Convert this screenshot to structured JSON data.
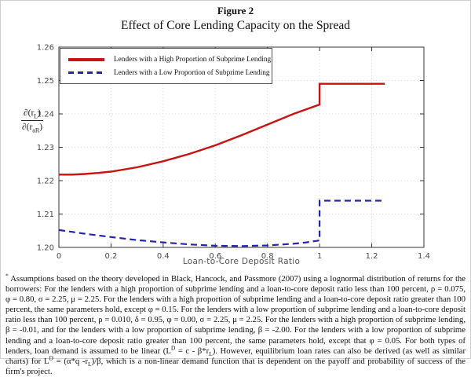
{
  "header": {
    "figure_label": "Figure 2",
    "title": "Effect of Core Lending Capacity on the Spread"
  },
  "chart_data": {
    "type": "line",
    "title": "Effect of Core Lending Capacity on the Spread",
    "xlabel": "Loan-to-Core Deposit Ratio",
    "ylabel": "∂(r_L)/∂(r_aR)",
    "ylabel_fraction": {
      "numerator": [
        {
          "t": "∂(r"
        },
        {
          "t": "L",
          "s": "sub"
        },
        {
          "t": ")"
        }
      ],
      "denominator": [
        {
          "t": "∂(r"
        },
        {
          "t": "aR",
          "s": "sub"
        },
        {
          "t": ")"
        }
      ]
    },
    "xlim": [
      0,
      1.4
    ],
    "ylim": [
      1.2,
      1.26
    ],
    "x_ticks": [
      "0",
      "0.2",
      "0.4",
      "0.6",
      "0.8",
      "1",
      "1.2",
      "1.4"
    ],
    "y_ticks": [
      "1.20",
      "1.21",
      "1.22",
      "1.23",
      "1.24",
      "1.25",
      "1.26"
    ],
    "grid": true,
    "legend_position": "top-left",
    "series": [
      {
        "name": "Lenders with a High Proportion of Subprime Lending",
        "color": "#cc1111",
        "style": "solid",
        "points": [
          [
            0,
            1.2218
          ],
          [
            0.05,
            1.2218
          ],
          [
            0.1,
            1.222
          ],
          [
            0.15,
            1.2223
          ],
          [
            0.2,
            1.2227
          ],
          [
            0.3,
            1.224
          ],
          [
            0.4,
            1.2258
          ],
          [
            0.5,
            1.228
          ],
          [
            0.6,
            1.2306
          ],
          [
            0.7,
            1.2336
          ],
          [
            0.8,
            1.2368
          ],
          [
            0.9,
            1.24
          ],
          [
            1.0,
            1.2428
          ],
          [
            1.0,
            1.249
          ],
          [
            1.25,
            1.249
          ]
        ]
      },
      {
        "name": "Lenders with a Low Proportion of Subprime Lending",
        "color": "#2424ae",
        "style": "dashed",
        "points": [
          [
            0,
            1.2052
          ],
          [
            0.1,
            1.2041
          ],
          [
            0.2,
            1.2031
          ],
          [
            0.3,
            1.2022
          ],
          [
            0.4,
            1.2015
          ],
          [
            0.5,
            1.2009
          ],
          [
            0.6,
            1.2005
          ],
          [
            0.7,
            1.2004
          ],
          [
            0.8,
            1.2006
          ],
          [
            0.9,
            1.2011
          ],
          [
            0.95,
            1.2015
          ],
          [
            1.0,
            1.2021
          ],
          [
            1.0,
            1.214
          ],
          [
            1.25,
            1.214
          ]
        ]
      }
    ]
  },
  "footnote": {
    "segments": [
      {
        "t": "*",
        "s": "sup"
      },
      {
        "t": " Assumptions based on the theory developed in Black, Hancock, and Passmore (2007) using a lognormal distribution of returns for the borrowers: For the lenders with a high proportion of subprime lending and a loan-to-core deposit ratio less than 100 percent, ρ = 0.075, φ = 0.80, σ = 2.25, μ = 2.25. For the lenders with a high proportion of subprime lending and a loan-to-core deposit ratio greater than 100 percent, the same parameters hold, except φ = 0.15. For the lenders with a low proportion of subprime lending and a loan-to-core deposit ratio less than 100 percent, ρ = 0.010, δ = 0.95, φ = 0.00, σ = 2.25, μ = 2.25. For the lenders with a high proportion of subprime lending, β = -0.01, and for the lenders with a low proportion of subprime lending, β = -2.00. For the lenders with a low proportion of subprime lending and a loan-to-core deposit ratio greater than 100 percent, the same parameters hold, except that φ = 0.05. For both types of lenders, loan demand is assumed to be linear (L"
      },
      {
        "t": "D",
        "s": "sup"
      },
      {
        "t": " = c - β*r"
      },
      {
        "t": "L",
        "s": "sub"
      },
      {
        "t": "). However, equilibrium loan rates can also be derived (as well as similar charts) for L"
      },
      {
        "t": "D",
        "s": "sup"
      },
      {
        "t": " = (α*q -r"
      },
      {
        "t": "L",
        "s": "sub"
      },
      {
        "t": ")/β, which is a non-linear demand function that is dependent on the payoff and probability of success of the firm's project."
      }
    ]
  }
}
